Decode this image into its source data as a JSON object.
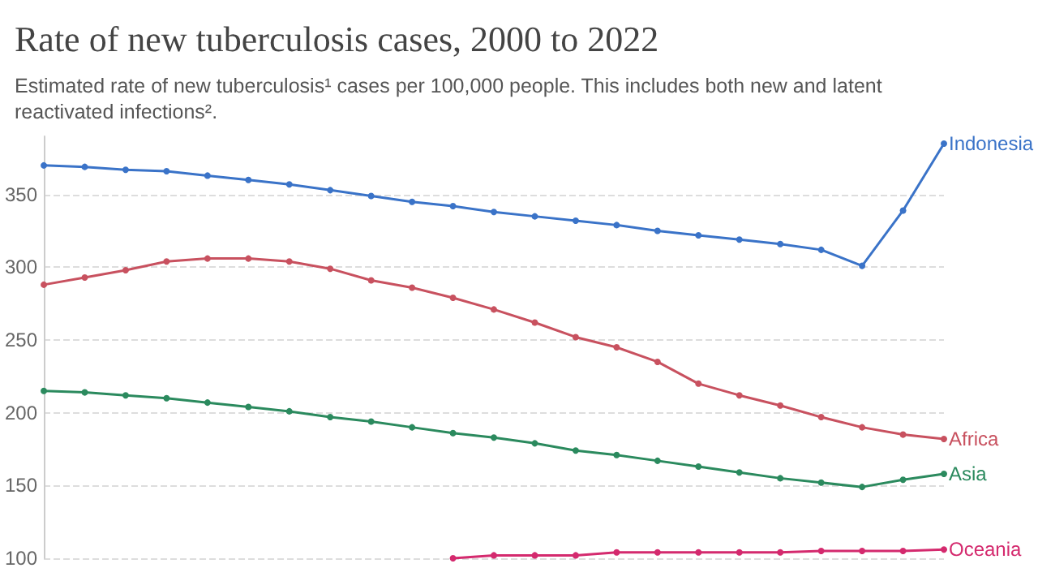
{
  "chart_data": {
    "type": "line",
    "title": "Rate of new tuberculosis cases, 2000 to 2022",
    "subtitle": "Estimated rate of new tuberculosis¹ cases per 100,000 people. This includes both new and latent reactivated infections².",
    "categories": [
      null,
      null,
      null,
      null,
      null,
      null,
      null,
      null,
      null,
      null,
      null,
      null,
      null,
      null,
      null,
      null,
      null,
      null,
      null,
      null,
      null,
      null,
      null
    ],
    "series": [
      {
        "name": "Indonesia",
        "color": "#3a73c8",
        "values": [
          370,
          369,
          367,
          366,
          363,
          360,
          357,
          353,
          349,
          345,
          342,
          338,
          335,
          332,
          329,
          325,
          322,
          319,
          316,
          312,
          301,
          339,
          385
        ]
      },
      {
        "name": "Africa",
        "color": "#c8515f",
        "values": [
          288,
          293,
          298,
          304,
          306,
          306,
          304,
          299,
          291,
          286,
          279,
          271,
          262,
          252,
          245,
          235,
          220,
          212,
          205,
          197,
          190,
          185,
          182
        ]
      },
      {
        "name": "Asia",
        "color": "#2b8a5e",
        "values": [
          215,
          214,
          212,
          210,
          207,
          204,
          201,
          197,
          194,
          190,
          186,
          183,
          179,
          174,
          171,
          167,
          163,
          159,
          155,
          152,
          149,
          154,
          158
        ]
      },
      {
        "name": "Oceania",
        "color": "#d42a6e",
        "values": [
          null,
          null,
          null,
          null,
          null,
          null,
          null,
          null,
          null,
          null,
          100,
          102,
          102,
          102,
          104,
          104,
          104,
          104,
          104,
          105,
          105,
          105,
          106
        ]
      }
    ],
    "ylim": [
      100,
      390
    ],
    "yticks": [
      100,
      150,
      200,
      250,
      300,
      350
    ],
    "grid": "y",
    "tick_labels": "y",
    "marker": "circle",
    "line_style": "solid",
    "legend": false
  }
}
